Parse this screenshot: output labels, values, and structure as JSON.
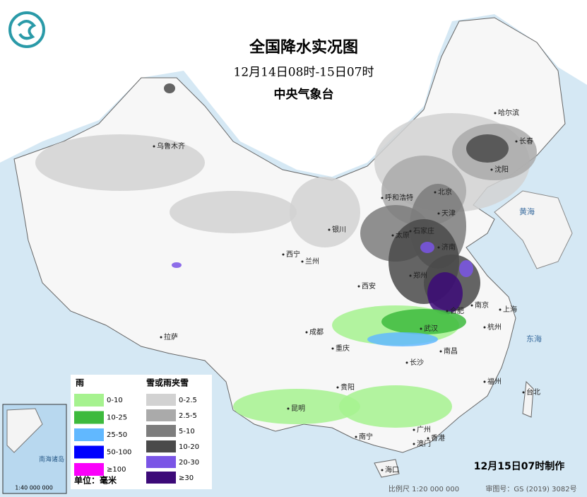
{
  "header": {
    "title": "全国降水实况图",
    "subtitle": "12月14日08时-15日07时",
    "source": "中央气象台"
  },
  "legend": {
    "rain": {
      "title": "雨",
      "items": [
        {
          "label": "0-10",
          "color": "#a6f28f"
        },
        {
          "label": "10-25",
          "color": "#3dba3d"
        },
        {
          "label": "25-50",
          "color": "#61b8ff"
        },
        {
          "label": "50-100",
          "color": "#0000fe"
        },
        {
          "label": "≥100",
          "color": "#fa00fa"
        }
      ]
    },
    "snow": {
      "title": "雪或雨夹雪",
      "items": [
        {
          "label": "0-2.5",
          "color": "#d2d2d2"
        },
        {
          "label": "2.5-5",
          "color": "#aaaaaa"
        },
        {
          "label": "5-10",
          "color": "#7d7d7d"
        },
        {
          "label": "10-20",
          "color": "#4a4a4a"
        },
        {
          "label": "20-30",
          "color": "#7a55e6"
        },
        {
          "label": "≥30",
          "color": "#3c0a78"
        }
      ]
    },
    "unit": "单位：毫米"
  },
  "cities": [
    "哈尔滨",
    "长春",
    "沈阳",
    "乌鲁木齐",
    "呼和浩特",
    "北京",
    "天津",
    "石家庄",
    "太原",
    "济南",
    "银川",
    "西宁",
    "兰州",
    "郑州",
    "西安",
    "南京",
    "上海",
    "合肥",
    "武汉",
    "杭州",
    "成都",
    "拉萨",
    "重庆",
    "长沙",
    "南昌",
    "贵阳",
    "福州",
    "昆明",
    "台北",
    "南宁",
    "广州",
    "香港",
    "澳门",
    "海口"
  ],
  "seas": [
    "黄海",
    "东海"
  ],
  "inset": {
    "label": "南海诸岛",
    "scale": "1:40 000 000"
  },
  "footer": {
    "issued": "12月15日07时制作",
    "scale": "比例尺 1:20 000 000",
    "approval": "审图号：GS (2019) 3082号"
  }
}
